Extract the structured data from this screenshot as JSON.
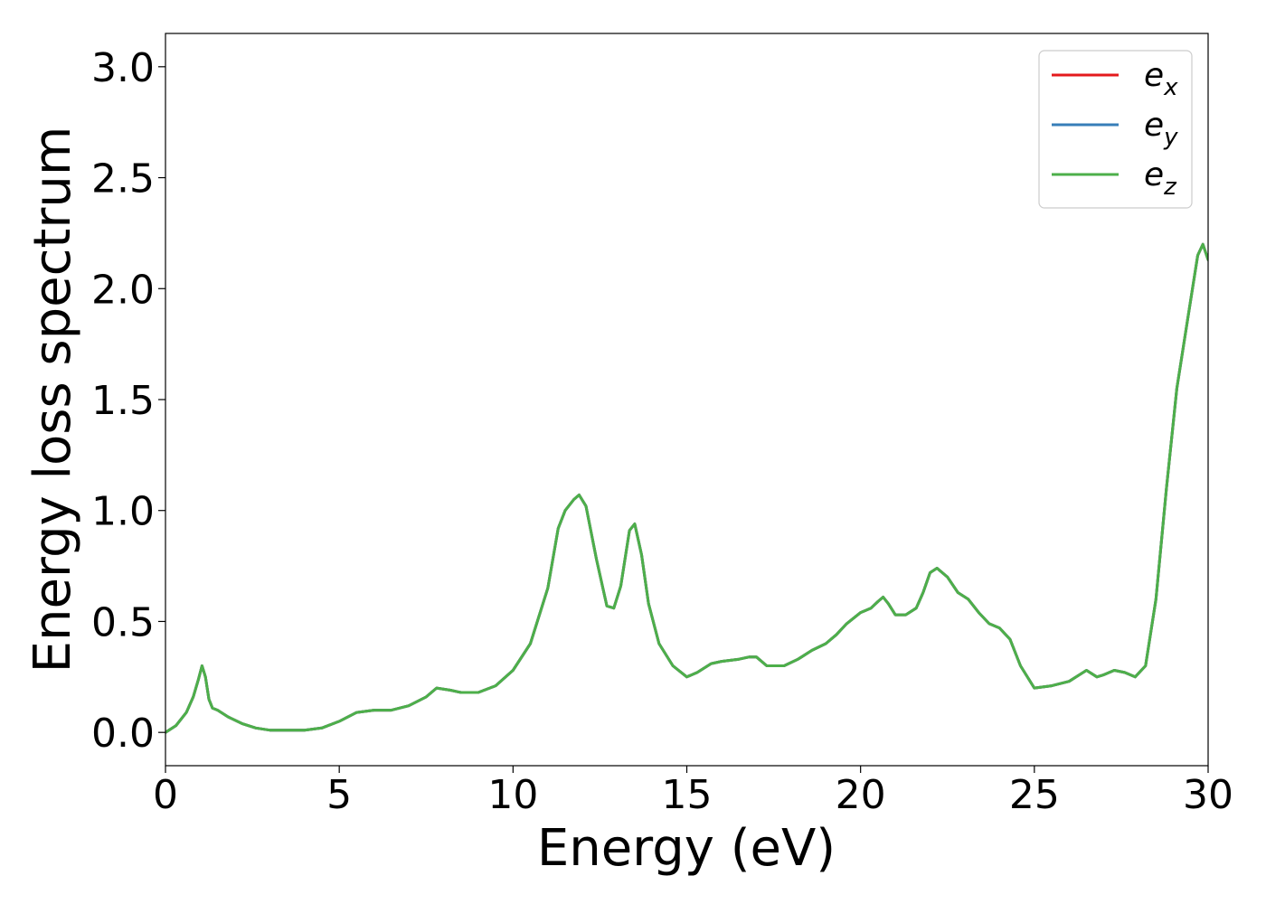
{
  "chart_data": {
    "type": "line",
    "xlabel": "Energy (eV)",
    "ylabel": "Energy loss spectrum",
    "xlim": [
      0,
      30
    ],
    "ylim": [
      -0.15,
      3.15
    ],
    "xticks": [
      "0",
      "5",
      "10",
      "15",
      "20",
      "25",
      "30"
    ],
    "yticks": [
      "0.0",
      "0.5",
      "1.0",
      "1.5",
      "2.0",
      "2.5",
      "3.0"
    ],
    "grid": false,
    "legend_position": "top-right",
    "legend": [
      {
        "base": "e",
        "sub": "x",
        "color": "#e41a1c"
      },
      {
        "base": "e",
        "sub": "y",
        "color": "#377eb8"
      },
      {
        "base": "e",
        "sub": "z",
        "color": "#4daf4a"
      }
    ],
    "x": [
      0,
      0.3,
      0.6,
      0.8,
      0.95,
      1.05,
      1.15,
      1.25,
      1.35,
      1.5,
      1.8,
      2.2,
      2.6,
      3.0,
      3.5,
      4.0,
      4.5,
      5.0,
      5.5,
      6.0,
      6.5,
      7.0,
      7.5,
      7.8,
      8.2,
      8.5,
      9.0,
      9.5,
      10.0,
      10.5,
      11.0,
      11.3,
      11.5,
      11.75,
      11.9,
      12.1,
      12.4,
      12.7,
      12.9,
      13.1,
      13.35,
      13.5,
      13.7,
      13.9,
      14.2,
      14.6,
      15.0,
      15.3,
      15.7,
      16.0,
      16.5,
      16.8,
      17.0,
      17.3,
      17.8,
      18.2,
      18.6,
      19.0,
      19.3,
      19.6,
      20.0,
      20.3,
      20.5,
      20.65,
      20.8,
      21.0,
      21.3,
      21.6,
      21.8,
      22.0,
      22.2,
      22.5,
      22.8,
      23.1,
      23.4,
      23.7,
      24.0,
      24.3,
      24.6,
      25.0,
      25.5,
      26.0,
      26.3,
      26.5,
      26.8,
      27.0,
      27.3,
      27.6,
      27.9,
      28.2,
      28.5,
      28.8,
      29.1,
      29.4,
      29.7,
      29.85,
      30.0
    ],
    "series": [
      {
        "name": "e_x",
        "color": "#e41a1c",
        "values": [
          0.0,
          0.03,
          0.09,
          0.16,
          0.24,
          0.3,
          0.25,
          0.15,
          0.11,
          0.1,
          0.07,
          0.04,
          0.02,
          0.01,
          0.01,
          0.01,
          0.02,
          0.05,
          0.09,
          0.1,
          0.1,
          0.12,
          0.16,
          0.2,
          0.19,
          0.18,
          0.18,
          0.21,
          0.28,
          0.4,
          0.65,
          0.92,
          1.0,
          1.05,
          1.07,
          1.02,
          0.78,
          0.57,
          0.56,
          0.66,
          0.91,
          0.94,
          0.8,
          0.58,
          0.4,
          0.3,
          0.25,
          0.27,
          0.31,
          0.32,
          0.33,
          0.34,
          0.34,
          0.3,
          0.3,
          0.33,
          0.37,
          0.4,
          0.44,
          0.49,
          0.54,
          0.56,
          0.59,
          0.61,
          0.58,
          0.53,
          0.53,
          0.56,
          0.63,
          0.72,
          0.74,
          0.7,
          0.63,
          0.6,
          0.54,
          0.49,
          0.47,
          0.42,
          0.3,
          0.2,
          0.21,
          0.23,
          0.26,
          0.28,
          0.25,
          0.26,
          0.28,
          0.27,
          0.25,
          0.3,
          0.6,
          1.1,
          1.55,
          1.85,
          2.15,
          2.2,
          2.13
        ]
      },
      {
        "name": "e_y",
        "color": "#377eb8",
        "values": [
          0.0,
          0.03,
          0.09,
          0.16,
          0.24,
          0.3,
          0.25,
          0.15,
          0.11,
          0.1,
          0.07,
          0.04,
          0.02,
          0.01,
          0.01,
          0.01,
          0.02,
          0.05,
          0.09,
          0.1,
          0.1,
          0.12,
          0.16,
          0.2,
          0.19,
          0.18,
          0.18,
          0.21,
          0.28,
          0.4,
          0.65,
          0.92,
          1.0,
          1.05,
          1.07,
          1.02,
          0.78,
          0.57,
          0.56,
          0.66,
          0.91,
          0.94,
          0.8,
          0.58,
          0.4,
          0.3,
          0.25,
          0.27,
          0.31,
          0.32,
          0.33,
          0.34,
          0.34,
          0.3,
          0.3,
          0.33,
          0.37,
          0.4,
          0.44,
          0.49,
          0.54,
          0.56,
          0.59,
          0.61,
          0.58,
          0.53,
          0.53,
          0.56,
          0.63,
          0.72,
          0.74,
          0.7,
          0.63,
          0.6,
          0.54,
          0.49,
          0.47,
          0.42,
          0.3,
          0.2,
          0.21,
          0.23,
          0.26,
          0.28,
          0.25,
          0.26,
          0.28,
          0.27,
          0.25,
          0.3,
          0.6,
          1.1,
          1.55,
          1.85,
          2.15,
          2.2,
          2.13
        ]
      },
      {
        "name": "e_z",
        "color": "#4daf4a",
        "values": [
          0.0,
          0.03,
          0.09,
          0.16,
          0.24,
          0.3,
          0.25,
          0.15,
          0.11,
          0.1,
          0.07,
          0.04,
          0.02,
          0.01,
          0.01,
          0.01,
          0.02,
          0.05,
          0.09,
          0.1,
          0.1,
          0.12,
          0.16,
          0.2,
          0.19,
          0.18,
          0.18,
          0.21,
          0.28,
          0.4,
          0.65,
          0.92,
          1.0,
          1.05,
          1.07,
          1.02,
          0.78,
          0.57,
          0.56,
          0.66,
          0.91,
          0.94,
          0.8,
          0.58,
          0.4,
          0.3,
          0.25,
          0.27,
          0.31,
          0.32,
          0.33,
          0.34,
          0.34,
          0.3,
          0.3,
          0.33,
          0.37,
          0.4,
          0.44,
          0.49,
          0.54,
          0.56,
          0.59,
          0.61,
          0.58,
          0.53,
          0.53,
          0.56,
          0.63,
          0.72,
          0.74,
          0.7,
          0.63,
          0.6,
          0.54,
          0.49,
          0.47,
          0.42,
          0.3,
          0.2,
          0.21,
          0.23,
          0.26,
          0.28,
          0.25,
          0.26,
          0.28,
          0.27,
          0.25,
          0.3,
          0.6,
          1.1,
          1.55,
          1.85,
          2.15,
          2.2,
          2.13
        ]
      }
    ]
  }
}
